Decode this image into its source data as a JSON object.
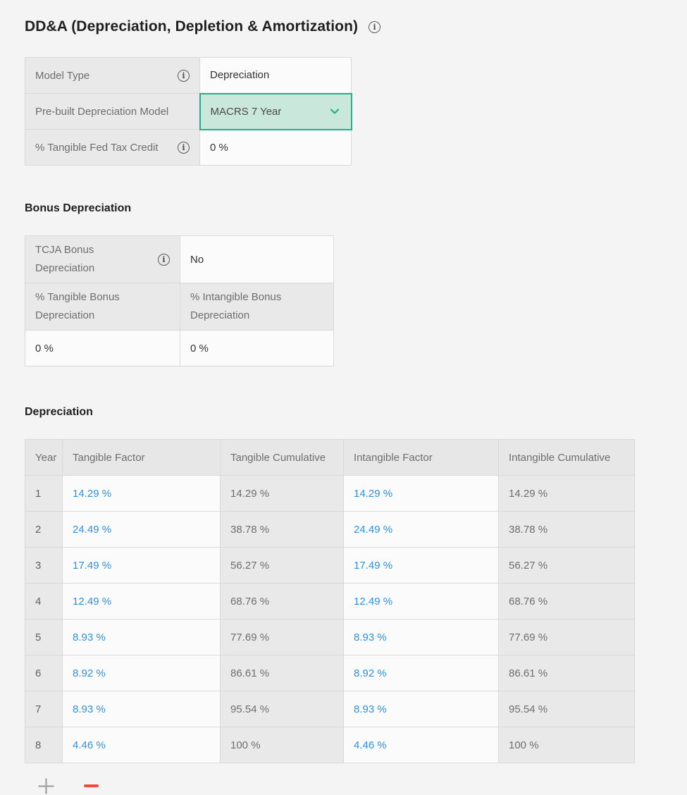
{
  "page": {
    "title": "DD&A (Depreciation, Depletion & Amortization)"
  },
  "settings": {
    "rows": [
      {
        "label": "Model Type",
        "value": "Depreciation"
      },
      {
        "label": "Pre-built Depreciation Model",
        "value": "MACRS 7 Year"
      },
      {
        "label": "% Tangible Fed Tax Credit",
        "value": "0 %"
      }
    ]
  },
  "bonus": {
    "heading": "Bonus Depreciation",
    "tcja_label": "TCJA Bonus Depreciation",
    "tcja_value": "No",
    "tangible_label": "% Tangible Bonus Depreciation",
    "intangible_label": "% Intangible Bonus Depreciation",
    "tangible_value": "0 %",
    "intangible_value": "0 %"
  },
  "depreciation": {
    "heading": "Depreciation",
    "columns": [
      "Year",
      "Tangible Factor",
      "Tangible Cumulative",
      "Intangible Factor",
      "Intangible Cumulative"
    ],
    "rows": [
      {
        "year": "1",
        "tangible_factor": "14.29 %",
        "tangible_cumulative": "14.29 %",
        "intangible_factor": "14.29 %",
        "intangible_cumulative": "14.29 %"
      },
      {
        "year": "2",
        "tangible_factor": "24.49 %",
        "tangible_cumulative": "38.78 %",
        "intangible_factor": "24.49 %",
        "intangible_cumulative": "38.78 %"
      },
      {
        "year": "3",
        "tangible_factor": "17.49 %",
        "tangible_cumulative": "56.27 %",
        "intangible_factor": "17.49 %",
        "intangible_cumulative": "56.27 %"
      },
      {
        "year": "4",
        "tangible_factor": "12.49 %",
        "tangible_cumulative": "68.76 %",
        "intangible_factor": "12.49 %",
        "intangible_cumulative": "68.76 %"
      },
      {
        "year": "5",
        "tangible_factor": "8.93 %",
        "tangible_cumulative": "77.69 %",
        "intangible_factor": "8.93 %",
        "intangible_cumulative": "77.69 %"
      },
      {
        "year": "6",
        "tangible_factor": "8.92 %",
        "tangible_cumulative": "86.61 %",
        "intangible_factor": "8.92 %",
        "intangible_cumulative": "86.61 %"
      },
      {
        "year": "7",
        "tangible_factor": "8.93 %",
        "tangible_cumulative": "95.54 %",
        "intangible_factor": "8.93 %",
        "intangible_cumulative": "95.54 %"
      },
      {
        "year": "8",
        "tangible_factor": "4.46 %",
        "tangible_cumulative": "100 %",
        "intangible_factor": "4.46 %",
        "intangible_cumulative": "100 %"
      }
    ]
  },
  "icons": {
    "info": "circled-i",
    "dropdown": "chevron-down",
    "add_row": "plus",
    "remove_row": "minus"
  },
  "colors": {
    "page_background": "#f4f4f4",
    "selected_cell_background": "#c9e7da",
    "selected_cell_border": "#21b187",
    "editable_value_blue": "#2f90e0",
    "remove_red": "#f4483c"
  }
}
